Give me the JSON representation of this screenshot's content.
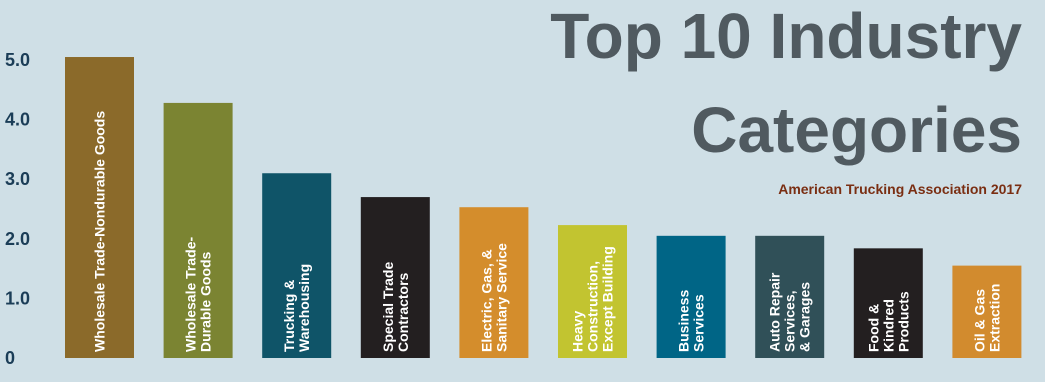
{
  "chart_data": {
    "type": "bar",
    "title_lines": [
      "Top 10 Industry",
      "Categories"
    ],
    "subtitle": "American Trucking Association 2017",
    "xlabel": "",
    "ylabel": "",
    "ylim": [
      0,
      5
    ],
    "yticks": [
      "0",
      "1.0",
      "2.0",
      "3.0",
      "4.0",
      "5.0"
    ],
    "grid": false,
    "legend": "none",
    "categories": [
      "Wholesale Trade-Nondurable Goods",
      "Wholesale Trade-Durable Goods",
      "Trucking & Warehousing",
      "Special Trade Contractors",
      "Electric, Gas, & Sanitary Service",
      "Heavy Construction, Except Building",
      "Business Services",
      "Auto Repair Services, & Garages",
      "Food & Kindred Products",
      "Oil & Gas Extraction"
    ],
    "label_lines": [
      [
        "Wholesale Trade-Nondurable Goods"
      ],
      [
        "Wholesale Trade-",
        "Durable Goods"
      ],
      [
        "Trucking &",
        "Warehousing"
      ],
      [
        "Special Trade",
        "Contractors"
      ],
      [
        "Electric, Gas, &",
        "Sanitary Service"
      ],
      [
        "Heavy",
        "Construction,",
        "Except Building"
      ],
      [
        "Business",
        "Services"
      ],
      [
        "Auto Repair",
        "Services,",
        "& Garages"
      ],
      [
        "Food &",
        "Kindred",
        "Products"
      ],
      [
        "Oil & Gas",
        "Extraction"
      ]
    ],
    "values": [
      5.05,
      4.28,
      3.1,
      2.7,
      2.53,
      2.23,
      2.05,
      2.05,
      1.84,
      1.55
    ],
    "colors": [
      "#8b6a2a",
      "#7b8432",
      "#0f5468",
      "#231f20",
      "#d48d2c",
      "#c2c430",
      "#006586",
      "#305058",
      "#231f20",
      "#d28b2e"
    ]
  }
}
